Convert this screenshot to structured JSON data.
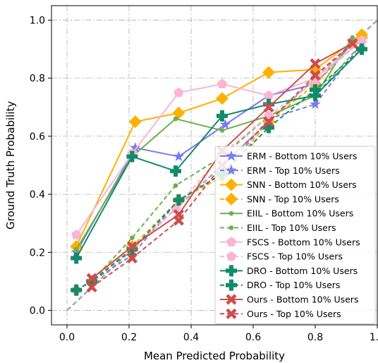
{
  "chart_data": {
    "type": "line",
    "title": "",
    "xlabel": "Mean Predicted Probability",
    "ylabel": "Ground Truth Probability",
    "xlim": [
      -0.05,
      1.0
    ],
    "ylim": [
      -0.05,
      1.05
    ],
    "xticks": [
      "0.0",
      "0.2",
      "0.4",
      "0.6",
      "0.8",
      "1.0"
    ],
    "yticks": [
      "0.0",
      "0.2",
      "0.4",
      "0.6",
      "0.8",
      "1.0"
    ],
    "grid": true,
    "legend_position": "lower-right",
    "reference_line": {
      "x": [
        0,
        1
      ],
      "y": [
        0,
        1
      ],
      "color": "#a9a9a9",
      "style": "dashed"
    },
    "series": [
      {
        "name": "ERM - Bottom 10% Users",
        "color": "#7b7bf2",
        "marker": "star",
        "dashed": false,
        "x": [
          0.03,
          0.22,
          0.36,
          0.51,
          0.65,
          0.8,
          0.92
        ],
        "y": [
          0.2,
          0.56,
          0.53,
          0.64,
          0.74,
          0.78,
          0.92
        ]
      },
      {
        "name": "ERM - Top 10% Users",
        "color": "#7b7bf2",
        "marker": "star",
        "dashed": true,
        "x": [
          0.03,
          0.08,
          0.21,
          0.36,
          0.5,
          0.65,
          0.8,
          0.95
        ],
        "y": [
          0.07,
          0.1,
          0.19,
          0.38,
          0.47,
          0.66,
          0.71,
          0.92
        ]
      },
      {
        "name": "SNN - Bottom 10% Users",
        "color": "#ffb000",
        "marker": "diamond",
        "dashed": false,
        "x": [
          0.03,
          0.22,
          0.36,
          0.5,
          0.65,
          0.8,
          0.95
        ],
        "y": [
          0.22,
          0.65,
          0.68,
          0.73,
          0.82,
          0.83,
          0.95
        ]
      },
      {
        "name": "SNN - Top 10% Users",
        "color": "#ffb000",
        "marker": "diamond",
        "dashed": true,
        "x": [
          0.03,
          0.08,
          0.21,
          0.36,
          0.5,
          0.65,
          0.8,
          0.95
        ],
        "y": [
          0.07,
          0.1,
          0.22,
          0.38,
          0.46,
          0.65,
          0.78,
          0.94
        ]
      },
      {
        "name": "EIIL - Bottom 10% Users",
        "color": "#6ab04c",
        "marker": "circle",
        "dashed": false,
        "x": [
          0.03,
          0.21,
          0.35,
          0.5,
          0.65,
          0.8,
          0.92
        ],
        "y": [
          0.21,
          0.53,
          0.66,
          0.62,
          0.67,
          0.74,
          0.94
        ]
      },
      {
        "name": "EIIL - Top 10% Users",
        "color": "#6ab04c",
        "marker": "circle",
        "dashed": true,
        "x": [
          0.03,
          0.08,
          0.21,
          0.35,
          0.5,
          0.65,
          0.8,
          0.95
        ],
        "y": [
          0.07,
          0.1,
          0.25,
          0.43,
          0.53,
          0.67,
          0.74,
          0.92
        ]
      },
      {
        "name": "FSCS - Bottom 10% Users",
        "color": "#f9b6d2",
        "marker": "pentagon",
        "dashed": false,
        "x": [
          0.03,
          0.21,
          0.36,
          0.5,
          0.65,
          0.8,
          0.95
        ],
        "y": [
          0.26,
          0.54,
          0.75,
          0.78,
          0.74,
          0.8,
          0.93
        ]
      },
      {
        "name": "FSCS - Top 10% Users",
        "color": "#f9b6d2",
        "marker": "pentagon",
        "dashed": true,
        "x": [
          0.03,
          0.08,
          0.21,
          0.35,
          0.5,
          0.65,
          0.8,
          0.95
        ],
        "y": [
          0.07,
          0.1,
          0.21,
          0.35,
          0.54,
          0.67,
          0.79,
          0.93
        ]
      },
      {
        "name": "DRO - Bottom 10% Users",
        "color": "#138a68",
        "marker": "plus",
        "dashed": false,
        "x": [
          0.03,
          0.21,
          0.35,
          0.5,
          0.65,
          0.8,
          0.95
        ],
        "y": [
          0.18,
          0.53,
          0.48,
          0.67,
          0.71,
          0.74,
          0.9
        ]
      },
      {
        "name": "DRO - Top 10% Users",
        "color": "#138a68",
        "marker": "plus",
        "dashed": true,
        "x": [
          0.03,
          0.08,
          0.21,
          0.36,
          0.5,
          0.65,
          0.8,
          0.95
        ],
        "y": [
          0.07,
          0.1,
          0.21,
          0.38,
          0.47,
          0.63,
          0.76,
          0.9
        ]
      },
      {
        "name": "Ours - Bottom 10% Users",
        "color": "#cd4d4d",
        "marker": "x",
        "dashed": false,
        "x": [
          0.08,
          0.21,
          0.36,
          0.5,
          0.65,
          0.8,
          0.92
        ],
        "y": [
          0.11,
          0.22,
          0.33,
          0.55,
          0.7,
          0.85,
          0.92
        ]
      },
      {
        "name": "Ours - Top 10% Users",
        "color": "#cd4d4d",
        "marker": "x",
        "dashed": true,
        "x": [
          0.08,
          0.21,
          0.36,
          0.5,
          0.65,
          0.8,
          0.92
        ],
        "y": [
          0.08,
          0.18,
          0.31,
          0.5,
          0.65,
          0.81,
          0.92
        ]
      }
    ]
  }
}
